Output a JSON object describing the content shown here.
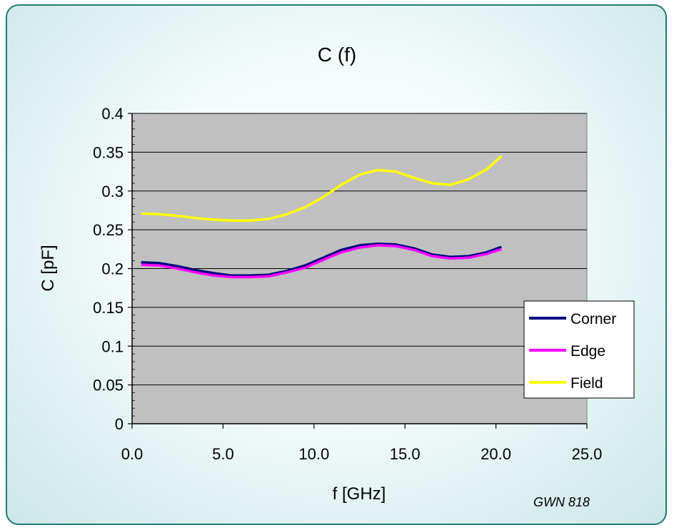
{
  "chart_data": {
    "type": "line",
    "title": "C (f)",
    "xlabel": "f [GHz]",
    "ylabel": "C [pF]",
    "xlim": [
      0,
      25
    ],
    "ylim": [
      0,
      0.4
    ],
    "x_ticks": [
      "0.0",
      "5.0",
      "10.0",
      "15.0",
      "20.0",
      "25.0"
    ],
    "y_ticks": [
      "0",
      "0.05",
      "0.1",
      "0.15",
      "0.2",
      "0.25",
      "0.3",
      "0.35",
      "0.4"
    ],
    "grid": "horizontal",
    "legend_position": "right",
    "plot_background": "#c0c0c0",
    "x": [
      0.5,
      1.5,
      2.5,
      3.5,
      4.5,
      5.5,
      6.5,
      7.5,
      8.5,
      9.5,
      10.5,
      11.5,
      12.5,
      13.5,
      14.5,
      15.5,
      16.5,
      17.5,
      18.5,
      19.5,
      20.3
    ],
    "series": [
      {
        "name": "Corner",
        "color": "#000080",
        "values": [
          0.208,
          0.207,
          0.203,
          0.198,
          0.194,
          0.191,
          0.191,
          0.192,
          0.197,
          0.204,
          0.214,
          0.224,
          0.23,
          0.232,
          0.231,
          0.226,
          0.218,
          0.215,
          0.216,
          0.221,
          0.228
        ]
      },
      {
        "name": "Edge",
        "color": "#ff00ff",
        "values": [
          0.205,
          0.204,
          0.2,
          0.195,
          0.191,
          0.189,
          0.189,
          0.19,
          0.195,
          0.201,
          0.211,
          0.221,
          0.227,
          0.23,
          0.229,
          0.224,
          0.216,
          0.213,
          0.214,
          0.219,
          0.225
        ]
      },
      {
        "name": "Field",
        "color": "#ffff00",
        "values": [
          0.271,
          0.27,
          0.268,
          0.265,
          0.263,
          0.262,
          0.262,
          0.264,
          0.27,
          0.279,
          0.292,
          0.308,
          0.321,
          0.327,
          0.325,
          0.317,
          0.31,
          0.308,
          0.315,
          0.328,
          0.345
        ]
      }
    ]
  },
  "footnote": "GWN 818"
}
